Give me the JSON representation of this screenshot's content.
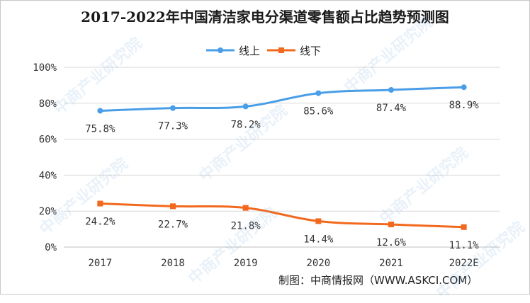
{
  "page": {
    "title": "2017-2022年中国清洁家电分渠道零售额占比趋势预测图",
    "footer": "制图：中商情报网（WWW.ASKCI.COM）",
    "watermark": "中商产业研究院"
  },
  "chart_data": {
    "type": "line",
    "title": "2017-2022年中国清洁家电分渠道零售额占比趋势预测图",
    "categories": [
      "2017",
      "2018",
      "2019",
      "2020",
      "2021",
      "2022E"
    ],
    "y_ticks": [
      "0%",
      "20%",
      "40%",
      "60%",
      "80%",
      "100%"
    ],
    "ylim": [
      0,
      100
    ],
    "grid": true,
    "legend_position": "top-center",
    "series": [
      {
        "name": "线上",
        "color": "#4a9ee8",
        "marker": "circle",
        "values": [
          75.8,
          77.3,
          78.2,
          85.6,
          87.4,
          88.9
        ],
        "labels": [
          "75.8%",
          "77.3%",
          "78.2%",
          "85.6%",
          "87.4%",
          "88.9%"
        ]
      },
      {
        "name": "线下",
        "color": "#f2691e",
        "marker": "square",
        "values": [
          24.2,
          22.7,
          21.8,
          14.4,
          12.6,
          11.1
        ],
        "labels": [
          "24.2%",
          "22.7%",
          "21.8%",
          "14.4%",
          "12.6%",
          "11.1%"
        ]
      }
    ]
  }
}
